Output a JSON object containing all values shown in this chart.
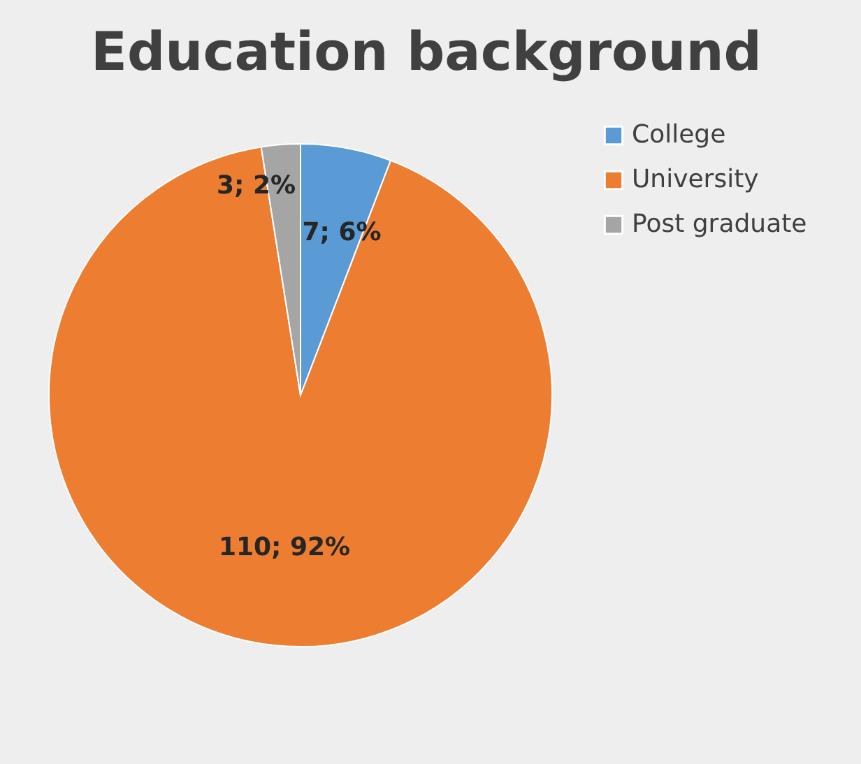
{
  "chart_data": {
    "type": "pie",
    "title": "Education background",
    "categories": [
      "College",
      "University",
      "Post graduate"
    ],
    "values": [
      7,
      110,
      3
    ],
    "colors": [
      "#5b9bd5",
      "#ed7d31",
      "#a5a5a5"
    ],
    "value_labels": [
      "7; 6%",
      "110; 92%",
      "3; 2%"
    ],
    "legend": "right"
  }
}
